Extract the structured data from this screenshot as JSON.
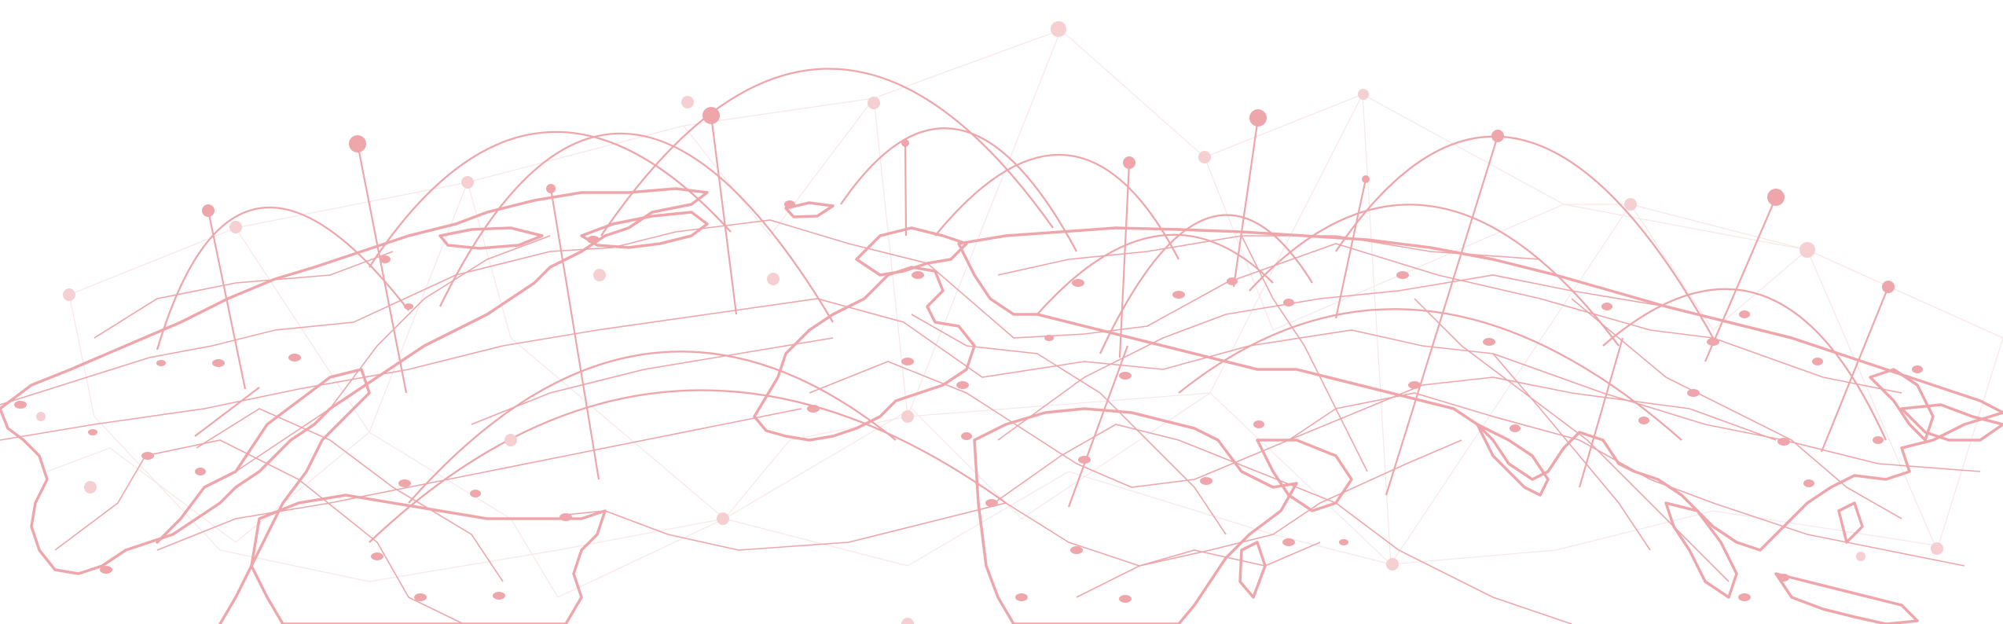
{
  "image": {
    "subject": "world-map-network-illustration",
    "colors": {
      "primary": "#eea6ab",
      "faint": "#f5cfd2",
      "background": "#ffffff"
    }
  }
}
